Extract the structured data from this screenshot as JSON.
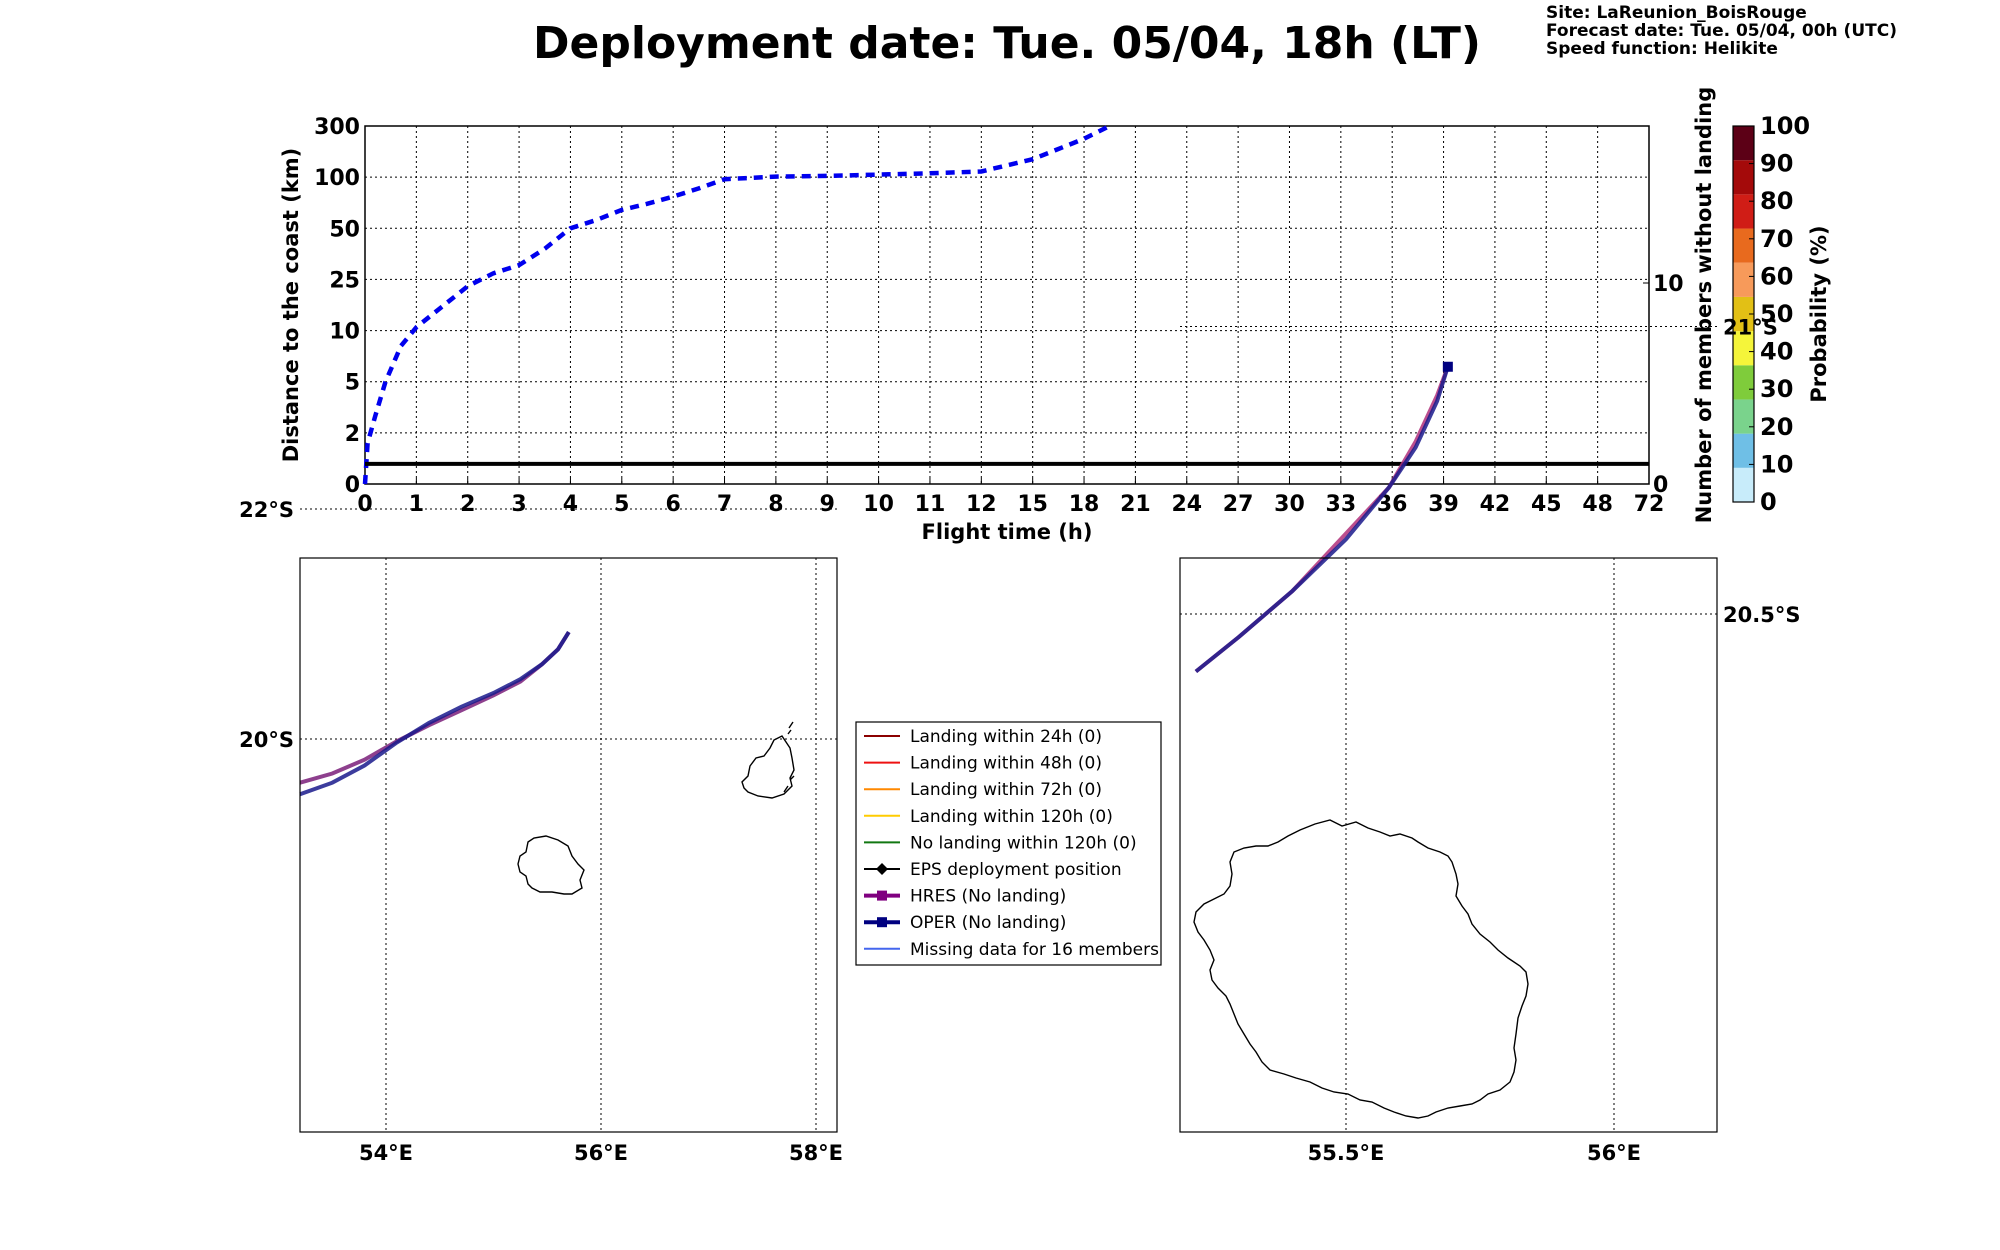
{
  "header": {
    "title": "Deployment date: Tue. 05/04, 18h (LT)",
    "site": "Site: LaReunion_BoisRouge",
    "forecast": "Forecast date: Tue. 05/04, 00h (UTC)",
    "speed": "Speed function: Helikite"
  },
  "chart_data": [
    {
      "type": "line",
      "xlabel": "Flight time (h)",
      "ylabel": "Distance to the coast (km)",
      "y2label": "Number of members without landing",
      "x_tick_labels": [
        "0",
        "1",
        "2",
        "3",
        "4",
        "5",
        "6",
        "7",
        "8",
        "9",
        "10",
        "11",
        "12",
        "15",
        "18",
        "21",
        "24",
        "27",
        "30",
        "33",
        "36",
        "39",
        "42",
        "45",
        "48",
        "72"
      ],
      "y_tick_labels": [
        "0",
        "2",
        "5",
        "10",
        "25",
        "50",
        "100",
        "300"
      ],
      "y2_tick_labels": [
        "0",
        "10"
      ],
      "grid": true,
      "series": [
        {
          "style": "dashed",
          "color": "#0000ee",
          "x": [
            0,
            0.05,
            0.2,
            0.4,
            0.7,
            1,
            1.5,
            2,
            2.5,
            3,
            3.5,
            4,
            4.5,
            5,
            5.5,
            6,
            6.5,
            7,
            8,
            9,
            10,
            11,
            12,
            15,
            18,
            19.5
          ],
          "y": [
            0,
            1.6,
            3,
            5,
            8.5,
            11,
            17,
            23,
            28,
            32,
            40,
            50,
            58,
            68,
            74,
            81,
            89,
            98,
            102,
            105,
            110,
            115,
            122,
            170,
            250,
            300
          ]
        },
        {
          "style": "solid",
          "color": "#000000",
          "x": [
            0,
            72
          ],
          "y2": [
            1,
            1
          ]
        }
      ]
    },
    {
      "type": "map",
      "lon_ticks": [
        "54°E",
        "56°E",
        "58°E"
      ],
      "lat_ticks": [
        "20°S",
        "22°S"
      ],
      "tracks": [
        {
          "name": "HRES",
          "color": "#7a1f7a",
          "lon": [
            53.2,
            53.5,
            53.8,
            54.1,
            54.4,
            54.7,
            55.0,
            55.25,
            55.45,
            55.6,
            55.7
          ],
          "lat": [
            -19.62,
            -19.7,
            -19.82,
            -19.98,
            -20.12,
            -20.25,
            -20.38,
            -20.5,
            -20.65,
            -20.78,
            -20.93
          ]
        },
        {
          "name": "OPER",
          "color": "#1a1a8c",
          "lon": [
            53.2,
            53.5,
            53.8,
            54.1,
            54.4,
            54.7,
            55.0,
            55.25,
            55.45,
            55.6,
            55.7
          ],
          "lat": [
            -19.52,
            -19.62,
            -19.77,
            -19.97,
            -20.14,
            -20.28,
            -20.4,
            -20.52,
            -20.65,
            -20.78,
            -20.93
          ]
        }
      ]
    },
    {
      "type": "map",
      "lon_ticks": [
        "55.5°E",
        "56°E"
      ],
      "lat_ticks": [
        "20.5°S",
        "21°S"
      ],
      "tracks": [
        {
          "name": "HRES",
          "color": "#b0307a",
          "lon": [
            55.22,
            55.3,
            55.4,
            55.5,
            55.58,
            55.63,
            55.67,
            55.69
          ],
          "lat": [
            -20.4,
            -20.46,
            -20.54,
            -20.64,
            -20.72,
            -20.8,
            -20.88,
            -20.93
          ]
        },
        {
          "name": "OPER",
          "color": "#1a1a8c",
          "lon": [
            55.22,
            55.3,
            55.4,
            55.5,
            55.58,
            55.63,
            55.67,
            55.69
          ],
          "lat": [
            -20.4,
            -20.46,
            -20.54,
            -20.63,
            -20.72,
            -20.79,
            -20.87,
            -20.93
          ]
        }
      ]
    }
  ],
  "legend": {
    "items": [
      {
        "label": "Landing within 24h (0)",
        "color": "#8b0000",
        "marker": "none"
      },
      {
        "label": "Landing within 48h (0)",
        "color": "#ee1111",
        "marker": "none"
      },
      {
        "label": "Landing within 72h (0)",
        "color": "#ff8800",
        "marker": "none"
      },
      {
        "label": "Landing within 120h (0)",
        "color": "#ffcc00",
        "marker": "none"
      },
      {
        "label": "No landing within 120h (0)",
        "color": "#117711",
        "marker": "none"
      },
      {
        "label": "EPS deployment position",
        "color": "#000000",
        "marker": "diamond"
      },
      {
        "label": "HRES (No landing)",
        "color": "#800080",
        "marker": "square"
      },
      {
        "label": "OPER (No landing)",
        "color": "#000080",
        "marker": "square"
      },
      {
        "label": "Missing data for 16 members",
        "color": "#4466ee",
        "marker": "none"
      }
    ]
  },
  "colorbar": {
    "label": "Probability (%)",
    "ticks": [
      "0",
      "10",
      "20",
      "30",
      "40",
      "50",
      "60",
      "70",
      "80",
      "90",
      "100"
    ],
    "colors": [
      "#c8ecfa",
      "#6fbfe6",
      "#7ad38c",
      "#7fcc3b",
      "#f5f53a",
      "#e2c015",
      "#f79a5a",
      "#e86a1e",
      "#d01d16",
      "#a40a0a",
      "#5c0016"
    ]
  }
}
